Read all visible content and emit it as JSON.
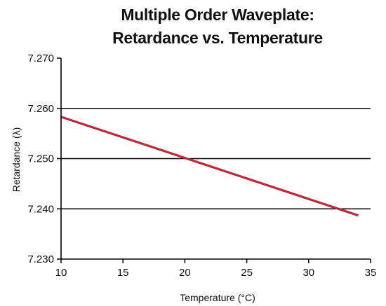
{
  "chart_data": {
    "type": "line",
    "title_lines": [
      "Multiple Order Waveplate:",
      "Retardance vs. Temperature"
    ],
    "xlabel": "Temperature (°C)",
    "ylabel": "Retardance (λ)",
    "xlim": [
      10,
      35
    ],
    "ylim": [
      7.23,
      7.27
    ],
    "x_ticks": [
      10,
      15,
      20,
      25,
      30,
      35
    ],
    "x_tick_labels": [
      "10",
      "15",
      "20",
      "25",
      "30",
      "35"
    ],
    "y_ticks": [
      7.23,
      7.24,
      7.25,
      7.26,
      7.27
    ],
    "y_tick_labels": [
      "7.230",
      "7.240",
      "7.250",
      "7.260",
      "7.270"
    ],
    "grid": "horizontal",
    "series": [
      {
        "color": "#c0283a",
        "x": [
          10,
          34
        ],
        "y": [
          7.2583,
          7.2387
        ]
      }
    ]
  }
}
